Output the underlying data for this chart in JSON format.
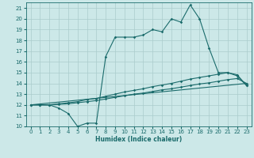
{
  "title": "",
  "xlabel": "Humidex (Indice chaleur)",
  "ylabel": "",
  "bg_color": "#cce8e8",
  "grid_color": "#aacccc",
  "line_color": "#1a6b6b",
  "xlim": [
    -0.5,
    23.5
  ],
  "ylim": [
    10,
    21.5
  ],
  "xticks": [
    0,
    1,
    2,
    3,
    4,
    5,
    6,
    7,
    8,
    9,
    10,
    11,
    12,
    13,
    14,
    15,
    16,
    17,
    18,
    19,
    20,
    21,
    22,
    23
  ],
  "yticks": [
    10,
    11,
    12,
    13,
    14,
    15,
    16,
    17,
    18,
    19,
    20,
    21
  ],
  "series1_x": [
    0,
    1,
    2,
    3,
    4,
    5,
    6,
    7,
    8,
    9,
    10,
    11,
    12,
    13,
    14,
    15,
    16,
    17,
    18,
    19,
    20,
    21,
    22,
    23
  ],
  "series1_y": [
    12.0,
    12.0,
    12.0,
    11.7,
    11.2,
    10.0,
    10.3,
    10.3,
    16.5,
    18.3,
    18.3,
    18.3,
    18.5,
    19.0,
    18.8,
    20.0,
    19.7,
    21.3,
    20.0,
    17.3,
    15.0,
    15.0,
    14.7,
    13.8
  ],
  "series2_x": [
    0,
    1,
    2,
    3,
    4,
    5,
    6,
    7,
    8,
    9,
    10,
    11,
    12,
    13,
    14,
    15,
    16,
    17,
    18,
    19,
    20,
    21,
    22,
    23
  ],
  "series2_y": [
    12.0,
    12.0,
    12.0,
    12.05,
    12.1,
    12.2,
    12.3,
    12.4,
    12.55,
    12.7,
    12.85,
    13.0,
    13.1,
    13.25,
    13.4,
    13.5,
    13.65,
    13.8,
    13.95,
    14.05,
    14.2,
    14.35,
    14.45,
    14.0
  ],
  "series3_x": [
    0,
    1,
    2,
    3,
    4,
    5,
    6,
    7,
    8,
    9,
    10,
    11,
    12,
    13,
    14,
    15,
    16,
    17,
    18,
    19,
    20,
    21,
    22,
    23
  ],
  "series3_y": [
    12.0,
    12.0,
    12.0,
    12.1,
    12.2,
    12.3,
    12.5,
    12.6,
    12.8,
    13.0,
    13.2,
    13.35,
    13.5,
    13.7,
    13.85,
    14.0,
    14.2,
    14.4,
    14.55,
    14.7,
    14.85,
    15.0,
    14.8,
    13.8
  ],
  "series4_x": [
    0,
    23
  ],
  "series4_y": [
    12.0,
    14.0
  ],
  "xlabel_fontsize": 5.5,
  "tick_fontsize": 5.0
}
